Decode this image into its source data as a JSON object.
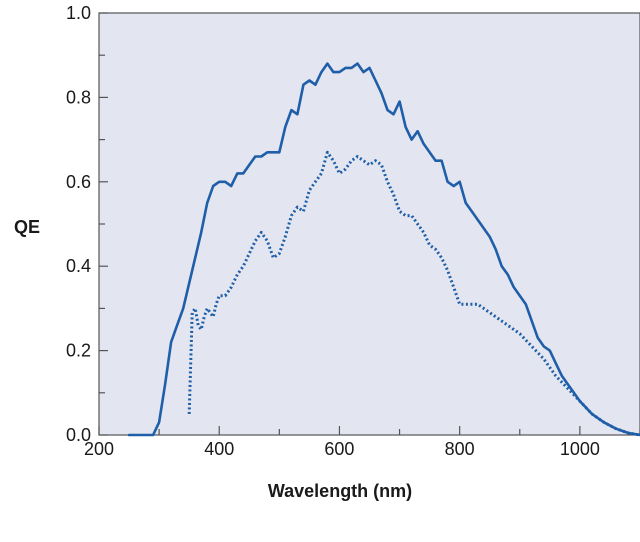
{
  "chart_data": {
    "type": "line",
    "title": "",
    "xlabel": "Wavelength (nm)",
    "ylabel": "QE",
    "xlim": [
      200,
      1100
    ],
    "ylim": [
      0,
      1.0
    ],
    "x_ticks": [
      200,
      400,
      600,
      800,
      1000
    ],
    "x_tick_labels": [
      "200",
      "400",
      "600",
      "800",
      "1000"
    ],
    "y_ticks": [
      0,
      0.2,
      0.4,
      0.6,
      0.8,
      1.0
    ],
    "y_tick_labels": [
      "0.0",
      "0.2",
      "0.4",
      "0.6",
      "0.8",
      "1.0"
    ],
    "grid": false,
    "legend": "none",
    "colors": {
      "background": "#e3e6f0",
      "line": "#1f5ea8",
      "axis": "#555555"
    },
    "series": [
      {
        "style": "solid",
        "x": [
          250,
          290,
          300,
          310,
          320,
          330,
          340,
          350,
          360,
          370,
          380,
          390,
          400,
          410,
          420,
          430,
          440,
          450,
          460,
          470,
          480,
          490,
          500,
          510,
          520,
          530,
          540,
          550,
          560,
          570,
          580,
          590,
          600,
          610,
          620,
          630,
          640,
          650,
          660,
          670,
          680,
          690,
          700,
          710,
          720,
          730,
          740,
          750,
          760,
          770,
          780,
          790,
          800,
          810,
          820,
          830,
          840,
          850,
          860,
          870,
          880,
          890,
          900,
          910,
          920,
          930,
          940,
          950,
          960,
          970,
          980,
          990,
          1000,
          1020,
          1040,
          1060,
          1080,
          1100
        ],
        "y": [
          0.0,
          0.0,
          0.03,
          0.12,
          0.22,
          0.26,
          0.3,
          0.36,
          0.42,
          0.48,
          0.55,
          0.59,
          0.6,
          0.6,
          0.59,
          0.62,
          0.62,
          0.64,
          0.66,
          0.66,
          0.67,
          0.67,
          0.67,
          0.73,
          0.77,
          0.76,
          0.83,
          0.84,
          0.83,
          0.86,
          0.88,
          0.86,
          0.86,
          0.87,
          0.87,
          0.88,
          0.86,
          0.87,
          0.84,
          0.81,
          0.77,
          0.76,
          0.79,
          0.73,
          0.7,
          0.72,
          0.69,
          0.67,
          0.65,
          0.65,
          0.6,
          0.59,
          0.6,
          0.55,
          0.53,
          0.51,
          0.49,
          0.47,
          0.44,
          0.4,
          0.38,
          0.35,
          0.33,
          0.31,
          0.27,
          0.23,
          0.21,
          0.2,
          0.17,
          0.14,
          0.12,
          0.1,
          0.08,
          0.05,
          0.03,
          0.015,
          0.005,
          0.0
        ]
      },
      {
        "style": "dotted",
        "x": [
          350,
          355,
          360,
          365,
          370,
          375,
          380,
          385,
          390,
          395,
          400,
          410,
          420,
          430,
          440,
          450,
          460,
          470,
          480,
          490,
          500,
          510,
          520,
          530,
          540,
          550,
          560,
          570,
          580,
          590,
          600,
          610,
          620,
          630,
          640,
          650,
          660,
          670,
          680,
          690,
          700,
          710,
          720,
          730,
          740,
          750,
          760,
          770,
          780,
          790,
          800,
          810,
          820,
          830,
          840,
          850,
          860,
          880,
          900,
          920,
          940,
          960,
          980,
          1000,
          1020,
          1040,
          1060,
          1080,
          1100
        ],
        "y": [
          0.05,
          0.29,
          0.3,
          0.26,
          0.25,
          0.28,
          0.3,
          0.29,
          0.28,
          0.31,
          0.33,
          0.33,
          0.35,
          0.38,
          0.4,
          0.43,
          0.46,
          0.48,
          0.46,
          0.42,
          0.43,
          0.47,
          0.52,
          0.54,
          0.53,
          0.58,
          0.6,
          0.62,
          0.67,
          0.65,
          0.62,
          0.63,
          0.65,
          0.66,
          0.65,
          0.64,
          0.65,
          0.64,
          0.6,
          0.57,
          0.53,
          0.52,
          0.52,
          0.5,
          0.48,
          0.45,
          0.44,
          0.42,
          0.39,
          0.35,
          0.31,
          0.31,
          0.31,
          0.31,
          0.3,
          0.29,
          0.28,
          0.26,
          0.24,
          0.21,
          0.18,
          0.14,
          0.11,
          0.08,
          0.05,
          0.03,
          0.015,
          0.005,
          0.0
        ]
      }
    ]
  }
}
